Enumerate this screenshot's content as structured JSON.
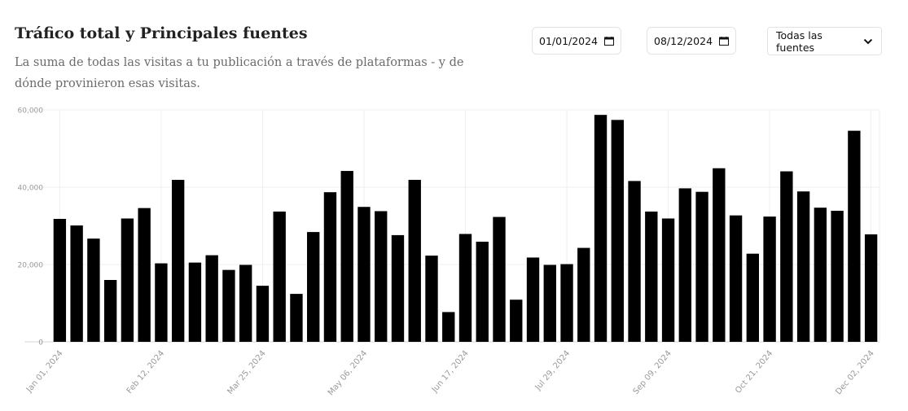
{
  "header": {
    "title": "Tráfico total y Principales fuentes",
    "subtitle": "La suma de todas las visitas a tu publicación a través de plataformas - y de dónde provinieron esas visitas."
  },
  "filters": {
    "start_date": "01/01/2024",
    "end_date": "08/12/2024",
    "source_select": "Todas las fuentes"
  },
  "chart_data": {
    "type": "bar",
    "bar_color": "#000000",
    "ylim": [
      0,
      60000
    ],
    "yticks": [
      0,
      20000,
      40000,
      60000
    ],
    "ytick_labels": [
      "0",
      "20,000",
      "40,000",
      "60,000"
    ],
    "grid": true,
    "xtick_labels": [
      {
        "index": 0,
        "label": "Jan 01, 2024"
      },
      {
        "index": 6,
        "label": "Feb 12, 2024"
      },
      {
        "index": 12,
        "label": "Mar 25, 2024"
      },
      {
        "index": 18,
        "label": "May 06, 2024"
      },
      {
        "index": 24,
        "label": "Jun 17, 2024"
      },
      {
        "index": 30,
        "label": "Jul 29, 2024"
      },
      {
        "index": 36,
        "label": "Sep 09, 2024"
      },
      {
        "index": 42,
        "label": "Oct 21, 2024"
      },
      {
        "index": 48,
        "label": "Dec 02, 2024"
      }
    ],
    "values": [
      31800,
      30100,
      26700,
      16000,
      31900,
      34600,
      20300,
      41900,
      20500,
      22400,
      18600,
      19900,
      14500,
      33700,
      12400,
      28400,
      38700,
      44200,
      34900,
      33800,
      27600,
      41900,
      22300,
      7700,
      27900,
      25900,
      32300,
      10900,
      21800,
      19900,
      20100,
      24300,
      58700,
      57400,
      41600,
      33700,
      31900,
      39700,
      38800,
      44900,
      32700,
      22800,
      32400,
      44100,
      38900,
      34700,
      33900,
      54600,
      27800
    ]
  }
}
